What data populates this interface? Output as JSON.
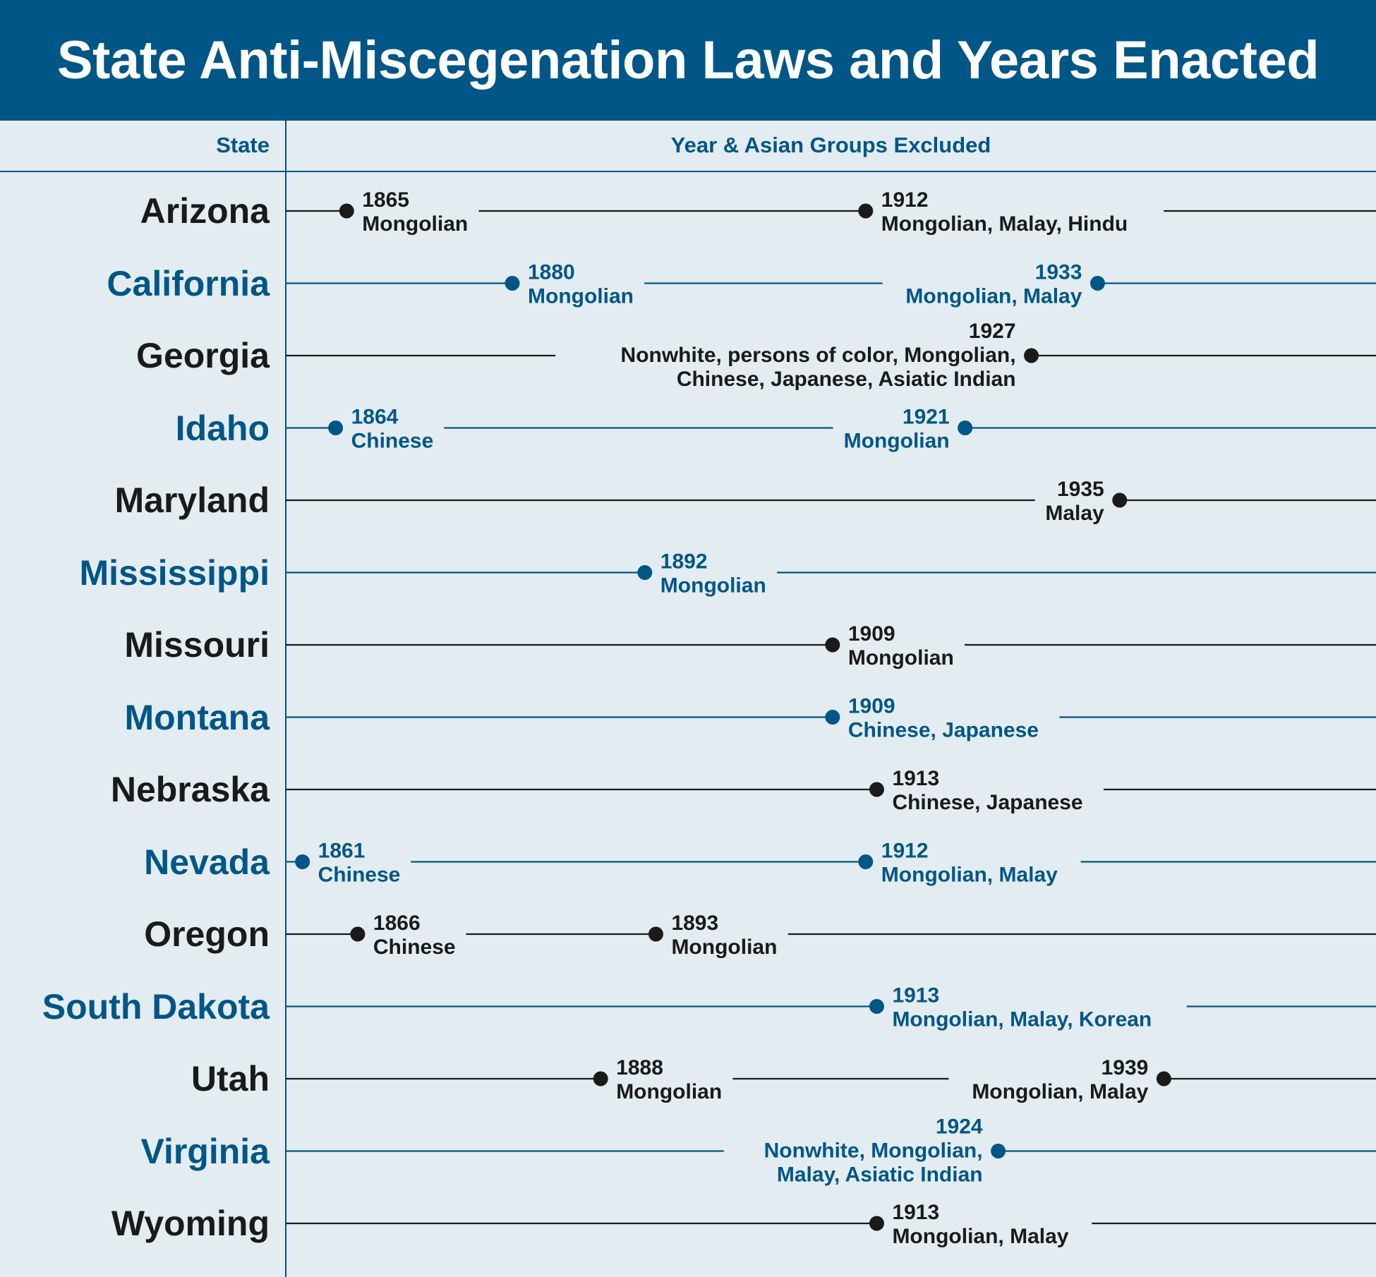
{
  "title": "State Anti-Miscegenation Laws and Years Enacted",
  "headers": {
    "state": "State",
    "years": "Year & Asian Groups Excluded"
  },
  "colors": {
    "brand": "#005687",
    "dark": "#1a1a1a",
    "background": "#e3ecf0",
    "title_text": "#ffffff"
  },
  "chart_data": {
    "type": "timeline",
    "x_domain": [
      1860,
      1940
    ],
    "grid": false,
    "rows": [
      {
        "state": "Arizona",
        "color": "dark",
        "events": [
          {
            "year": 1865,
            "groups": [
              "Mongolian"
            ],
            "label_side": "right"
          },
          {
            "year": 1912,
            "groups": [
              "Mongolian, Malay, Hindu"
            ],
            "label_side": "right"
          }
        ]
      },
      {
        "state": "California",
        "color": "brand",
        "events": [
          {
            "year": 1880,
            "groups": [
              "Mongolian"
            ],
            "label_side": "right"
          },
          {
            "year": 1933,
            "groups": [
              "Mongolian, Malay"
            ],
            "label_side": "left"
          }
        ]
      },
      {
        "state": "Georgia",
        "color": "dark",
        "events": [
          {
            "year": 1927,
            "groups": [
              "Nonwhite, persons of color, Mongolian,",
              "Chinese, Japanese, Asiatic Indian"
            ],
            "label_side": "left"
          }
        ]
      },
      {
        "state": "Idaho",
        "color": "brand",
        "events": [
          {
            "year": 1864,
            "groups": [
              "Chinese"
            ],
            "label_side": "right"
          },
          {
            "year": 1921,
            "groups": [
              "Mongolian"
            ],
            "label_side": "left"
          }
        ]
      },
      {
        "state": "Maryland",
        "color": "dark",
        "events": [
          {
            "year": 1935,
            "groups": [
              "Malay"
            ],
            "label_side": "left"
          }
        ]
      },
      {
        "state": "Mississippi",
        "color": "brand",
        "events": [
          {
            "year": 1892,
            "groups": [
              "Mongolian"
            ],
            "label_side": "right"
          }
        ]
      },
      {
        "state": "Missouri",
        "color": "dark",
        "events": [
          {
            "year": 1909,
            "groups": [
              "Mongolian"
            ],
            "label_side": "right"
          }
        ]
      },
      {
        "state": "Montana",
        "color": "brand",
        "events": [
          {
            "year": 1909,
            "groups": [
              "Chinese, Japanese"
            ],
            "label_side": "right"
          }
        ]
      },
      {
        "state": "Nebraska",
        "color": "dark",
        "events": [
          {
            "year": 1913,
            "groups": [
              "Chinese, Japanese"
            ],
            "label_side": "right"
          }
        ]
      },
      {
        "state": "Nevada",
        "color": "brand",
        "events": [
          {
            "year": 1861,
            "groups": [
              "Chinese"
            ],
            "label_side": "right"
          },
          {
            "year": 1912,
            "groups": [
              "Mongolian, Malay"
            ],
            "label_side": "right"
          }
        ]
      },
      {
        "state": "Oregon",
        "color": "dark",
        "events": [
          {
            "year": 1866,
            "groups": [
              "Chinese"
            ],
            "label_side": "right"
          },
          {
            "year": 1893,
            "groups": [
              "Mongolian"
            ],
            "label_side": "right"
          }
        ]
      },
      {
        "state": "South Dakota",
        "color": "brand",
        "events": [
          {
            "year": 1913,
            "groups": [
              "Mongolian, Malay, Korean"
            ],
            "label_side": "right"
          }
        ]
      },
      {
        "state": "Utah",
        "color": "dark",
        "events": [
          {
            "year": 1888,
            "groups": [
              "Mongolian"
            ],
            "label_side": "right"
          },
          {
            "year": 1939,
            "groups": [
              "Mongolian, Malay"
            ],
            "label_side": "left"
          }
        ]
      },
      {
        "state": "Virginia",
        "color": "brand",
        "events": [
          {
            "year": 1924,
            "groups": [
              "Nonwhite, Mongolian,",
              "Malay, Asiatic Indian"
            ],
            "label_side": "left"
          }
        ]
      },
      {
        "state": "Wyoming",
        "color": "dark",
        "events": [
          {
            "year": 1913,
            "groups": [
              "Mongolian, Malay"
            ],
            "label_side": "right"
          }
        ]
      }
    ]
  }
}
